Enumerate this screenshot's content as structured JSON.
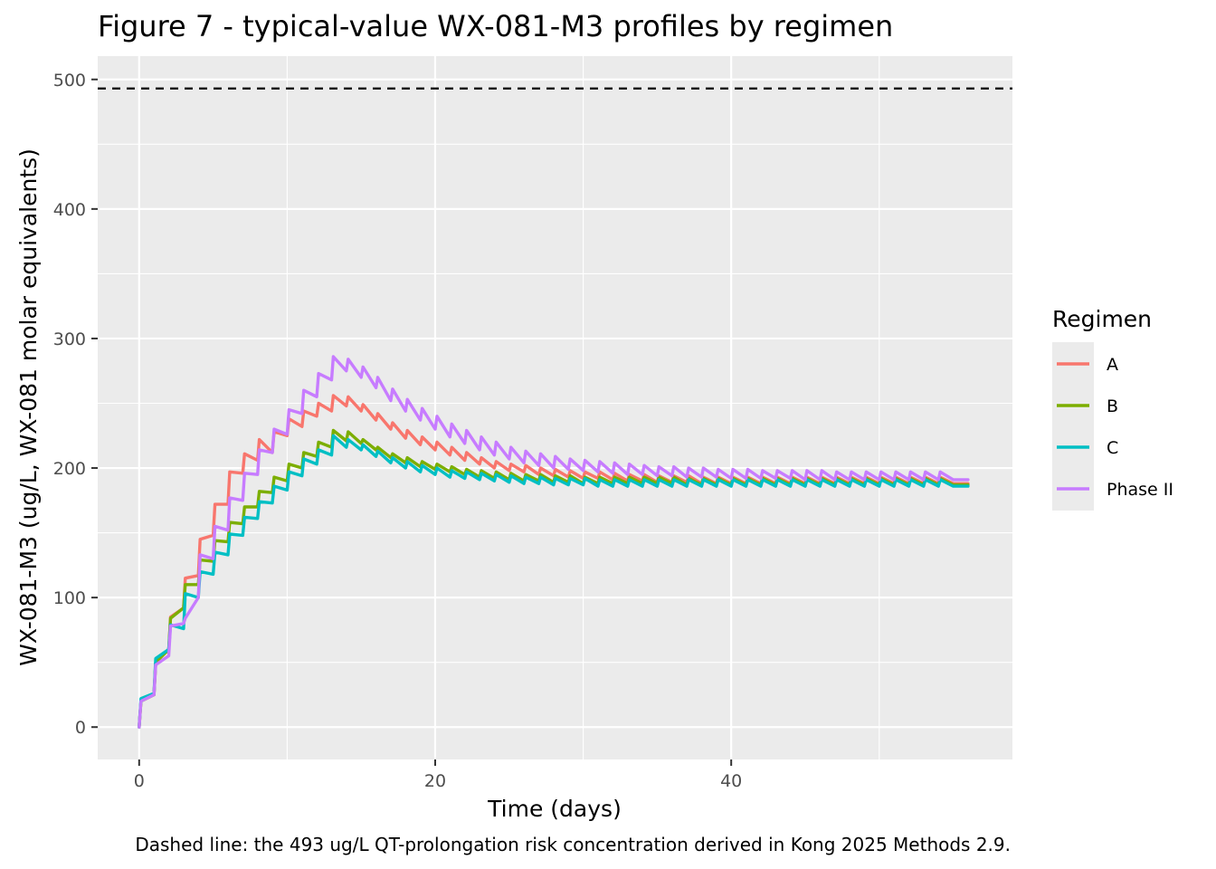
{
  "chart_data": {
    "type": "line",
    "title": "Figure 7 - typical-value WX-081-M3 profiles by regimen",
    "xlabel": "Time (days)",
    "ylabel": "WX-081-M3 (ug/L, WX-081 molar equivalents)",
    "caption": "Dashed line: the 493 ug/L QT-prolongation risk concentration derived in Kong 2025 Methods 2.9.",
    "xlim": [
      -2.8,
      59
    ],
    "ylim": [
      -25,
      518
    ],
    "x_ticks": [
      0,
      20,
      40
    ],
    "y_ticks": [
      0,
      100,
      200,
      300,
      400,
      500
    ],
    "grid": true,
    "reference_line": {
      "y": 493,
      "style": "dashed",
      "color": "#000000"
    },
    "legend": {
      "title": "Regimen",
      "placement": "right"
    },
    "x_end": 56,
    "series": [
      {
        "name": "A",
        "color": "#F8766D",
        "troughs": [
          [
            0,
            0
          ],
          [
            1,
            25
          ],
          [
            2,
            60
          ],
          [
            3,
            92
          ],
          [
            4,
            117
          ],
          [
            5,
            148
          ],
          [
            6,
            172
          ],
          [
            7,
            196
          ],
          [
            8,
            206
          ],
          [
            9,
            212
          ],
          [
            10,
            225
          ],
          [
            11,
            232
          ],
          [
            12,
            240
          ],
          [
            13,
            244
          ],
          [
            14,
            248
          ],
          [
            15,
            244
          ],
          [
            16,
            237
          ],
          [
            17,
            230
          ],
          [
            18,
            223
          ],
          [
            19,
            218
          ],
          [
            20,
            214
          ],
          [
            21,
            210
          ],
          [
            22,
            206
          ],
          [
            23,
            203
          ],
          [
            24,
            200
          ],
          [
            25,
            198
          ],
          [
            26,
            197
          ],
          [
            27,
            195
          ],
          [
            28,
            194
          ],
          [
            29,
            193
          ],
          [
            30,
            192
          ],
          [
            31,
            192
          ],
          [
            32,
            191
          ],
          [
            33,
            190
          ],
          [
            34,
            190
          ],
          [
            35,
            189
          ],
          [
            36,
            189
          ],
          [
            37,
            189
          ],
          [
            38,
            188
          ],
          [
            39,
            188
          ],
          [
            40,
            188
          ],
          [
            41,
            188
          ],
          [
            42,
            188
          ],
          [
            43,
            188
          ],
          [
            44,
            188
          ],
          [
            45,
            188
          ],
          [
            46,
            188
          ],
          [
            47,
            188
          ],
          [
            48,
            188
          ],
          [
            49,
            188
          ],
          [
            50,
            188
          ],
          [
            51,
            188
          ],
          [
            52,
            188
          ],
          [
            53,
            188
          ],
          [
            54,
            188
          ],
          [
            55,
            188
          ],
          [
            56,
            188
          ]
        ],
        "peaks": [
          20,
          50,
          85,
          115,
          145,
          172,
          197,
          211,
          222,
          228,
          238,
          244,
          250,
          256,
          255,
          249,
          242,
          235,
          229,
          224,
          220,
          216,
          212,
          208,
          205,
          203,
          202,
          200,
          199,
          198,
          197,
          197,
          196,
          195,
          195,
          194,
          194,
          194,
          193,
          193,
          193,
          193,
          193,
          193,
          193,
          193,
          193,
          193,
          193,
          193,
          193,
          193,
          193,
          193,
          193
        ]
      },
      {
        "name": "B",
        "color": "#7CAE00",
        "troughs": [
          [
            0,
            0
          ],
          [
            1,
            25
          ],
          [
            2,
            60
          ],
          [
            3,
            92
          ],
          [
            4,
            110
          ],
          [
            5,
            128
          ],
          [
            6,
            143
          ],
          [
            7,
            157
          ],
          [
            8,
            170
          ],
          [
            9,
            181
          ],
          [
            10,
            190
          ],
          [
            11,
            200
          ],
          [
            12,
            209
          ],
          [
            13,
            216
          ],
          [
            14,
            221
          ],
          [
            15,
            219
          ],
          [
            16,
            214
          ],
          [
            17,
            208
          ],
          [
            18,
            204
          ],
          [
            19,
            201
          ],
          [
            20,
            199
          ],
          [
            21,
            197
          ],
          [
            22,
            195
          ],
          [
            23,
            193
          ],
          [
            24,
            192
          ],
          [
            25,
            191
          ],
          [
            26,
            190
          ],
          [
            27,
            190
          ],
          [
            28,
            189
          ],
          [
            29,
            189
          ],
          [
            30,
            188
          ],
          [
            31,
            188
          ],
          [
            32,
            188
          ],
          [
            33,
            188
          ],
          [
            34,
            188
          ],
          [
            35,
            188
          ],
          [
            36,
            188
          ],
          [
            37,
            187
          ],
          [
            38,
            187
          ],
          [
            39,
            187
          ],
          [
            40,
            187
          ],
          [
            41,
            187
          ],
          [
            42,
            187
          ],
          [
            43,
            187
          ],
          [
            44,
            187
          ],
          [
            45,
            187
          ],
          [
            46,
            187
          ],
          [
            47,
            187
          ],
          [
            48,
            187
          ],
          [
            49,
            187
          ],
          [
            50,
            187
          ],
          [
            51,
            187
          ],
          [
            52,
            187
          ],
          [
            53,
            187
          ],
          [
            54,
            187
          ],
          [
            55,
            187
          ],
          [
            56,
            187
          ]
        ],
        "peaks": [
          20,
          50,
          84,
          110,
          129,
          144,
          158,
          170,
          182,
          193,
          203,
          212,
          220,
          229,
          228,
          222,
          216,
          211,
          208,
          205,
          203,
          201,
          199,
          198,
          197,
          196,
          195,
          195,
          194,
          194,
          193,
          193,
          193,
          193,
          193,
          193,
          193,
          192,
          192,
          192,
          192,
          192,
          192,
          192,
          192,
          192,
          192,
          192,
          192,
          192,
          192,
          192,
          192,
          192,
          192
        ]
      },
      {
        "name": "C",
        "color": "#00BFC4",
        "troughs": [
          [
            0,
            0
          ],
          [
            1,
            26
          ],
          [
            2,
            60
          ],
          [
            3,
            76
          ],
          [
            4,
            100
          ],
          [
            5,
            118
          ],
          [
            6,
            133
          ],
          [
            7,
            148
          ],
          [
            8,
            161
          ],
          [
            9,
            173
          ],
          [
            10,
            183
          ],
          [
            11,
            194
          ],
          [
            12,
            203
          ],
          [
            13,
            210
          ],
          [
            14,
            216
          ],
          [
            15,
            214
          ],
          [
            16,
            209
          ],
          [
            17,
            204
          ],
          [
            18,
            200
          ],
          [
            19,
            197
          ],
          [
            20,
            195
          ],
          [
            21,
            193
          ],
          [
            22,
            192
          ],
          [
            23,
            191
          ],
          [
            24,
            190
          ],
          [
            25,
            189
          ],
          [
            26,
            188
          ],
          [
            27,
            188
          ],
          [
            28,
            187
          ],
          [
            29,
            187
          ],
          [
            30,
            187
          ],
          [
            31,
            186
          ],
          [
            32,
            186
          ],
          [
            33,
            186
          ],
          [
            34,
            186
          ],
          [
            35,
            186
          ],
          [
            36,
            186
          ],
          [
            37,
            186
          ],
          [
            38,
            186
          ],
          [
            39,
            186
          ],
          [
            40,
            186
          ],
          [
            41,
            186
          ],
          [
            42,
            186
          ],
          [
            43,
            186
          ],
          [
            44,
            186
          ],
          [
            45,
            186
          ],
          [
            46,
            186
          ],
          [
            47,
            186
          ],
          [
            48,
            186
          ],
          [
            49,
            186
          ],
          [
            50,
            186
          ],
          [
            51,
            186
          ],
          [
            52,
            186
          ],
          [
            53,
            186
          ],
          [
            54,
            186
          ],
          [
            55,
            186
          ],
          [
            56,
            186
          ]
        ],
        "peaks": [
          22,
          53,
          79,
          103,
          120,
          135,
          149,
          162,
          174,
          186,
          197,
          207,
          214,
          225,
          222,
          218,
          213,
          208,
          205,
          202,
          200,
          198,
          197,
          196,
          195,
          194,
          193,
          193,
          192,
          192,
          192,
          191,
          191,
          191,
          191,
          191,
          191,
          191,
          191,
          191,
          191,
          191,
          191,
          191,
          191,
          191,
          191,
          191,
          191,
          191,
          191,
          191,
          191,
          191,
          191
        ]
      },
      {
        "name": "Phase II",
        "color": "#C77CFF",
        "troughs": [
          [
            0,
            0
          ],
          [
            1,
            25
          ],
          [
            2,
            55
          ],
          [
            3,
            80
          ],
          [
            4,
            100
          ],
          [
            5,
            130
          ],
          [
            6,
            152
          ],
          [
            7,
            175
          ],
          [
            8,
            195
          ],
          [
            9,
            212
          ],
          [
            10,
            226
          ],
          [
            11,
            242
          ],
          [
            12,
            255
          ],
          [
            13,
            268
          ],
          [
            14,
            275
          ],
          [
            15,
            270
          ],
          [
            16,
            262
          ],
          [
            17,
            252
          ],
          [
            18,
            244
          ],
          [
            19,
            237
          ],
          [
            20,
            230
          ],
          [
            21,
            224
          ],
          [
            22,
            219
          ],
          [
            23,
            214
          ],
          [
            24,
            210
          ],
          [
            25,
            207
          ],
          [
            26,
            204
          ],
          [
            27,
            202
          ],
          [
            28,
            200
          ],
          [
            29,
            199
          ],
          [
            30,
            198
          ],
          [
            31,
            197
          ],
          [
            32,
            196
          ],
          [
            33,
            195
          ],
          [
            34,
            195
          ],
          [
            35,
            194
          ],
          [
            36,
            194
          ],
          [
            37,
            193
          ],
          [
            38,
            193
          ],
          [
            39,
            193
          ],
          [
            40,
            192
          ],
          [
            41,
            192
          ],
          [
            42,
            192
          ],
          [
            43,
            192
          ],
          [
            44,
            192
          ],
          [
            45,
            191
          ],
          [
            46,
            191
          ],
          [
            47,
            191
          ],
          [
            48,
            191
          ],
          [
            49,
            191
          ],
          [
            50,
            191
          ],
          [
            51,
            191
          ],
          [
            52,
            191
          ],
          [
            53,
            191
          ],
          [
            54,
            191
          ],
          [
            55,
            191
          ],
          [
            56,
            191
          ]
        ],
        "peaks": [
          20,
          48,
          78,
          84,
          133,
          155,
          177,
          196,
          214,
          230,
          245,
          260,
          273,
          286,
          284,
          278,
          270,
          261,
          253,
          246,
          240,
          234,
          229,
          224,
          220,
          216,
          213,
          211,
          209,
          207,
          206,
          205,
          204,
          203,
          202,
          201,
          201,
          200,
          200,
          199,
          199,
          199,
          198,
          198,
          198,
          198,
          198,
          197,
          197,
          197,
          197,
          197,
          197,
          197,
          197
        ]
      }
    ]
  }
}
